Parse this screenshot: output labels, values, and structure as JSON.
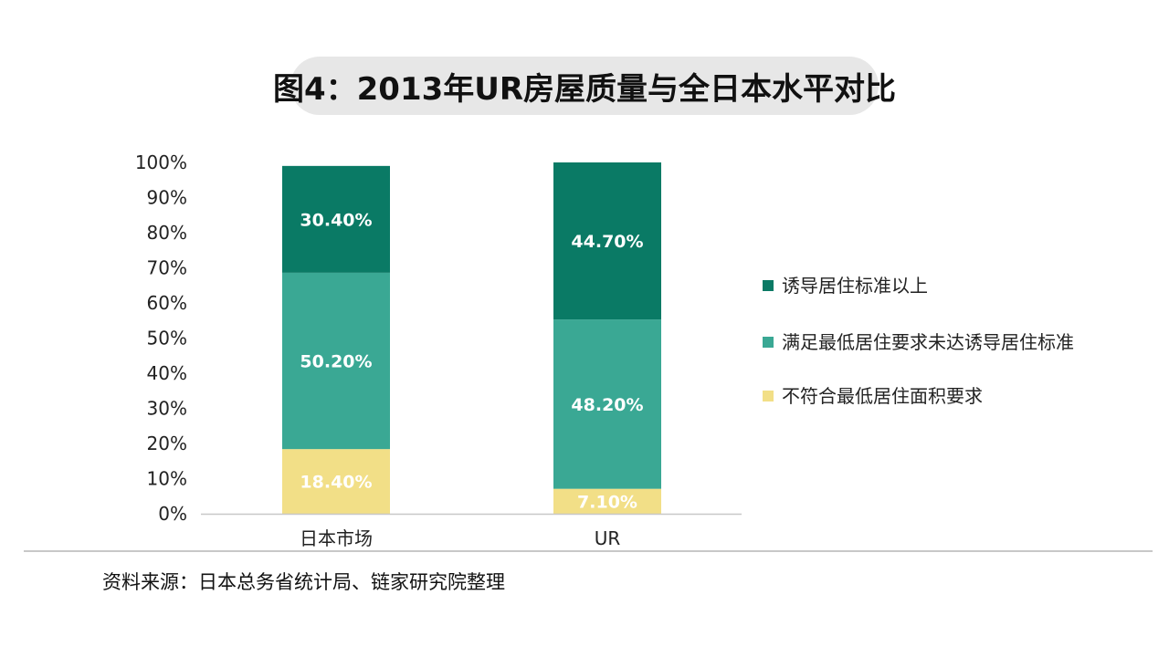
{
  "chart_data": {
    "type": "bar",
    "stacked": true,
    "title": "图4：2013年UR房屋质量与全日本水平对比",
    "categories": [
      "日本市场",
      "UR"
    ],
    "series": [
      {
        "name": "不符合最低居住面积要求",
        "values": [
          18.4,
          7.1
        ],
        "labels": [
          "18.40%",
          "7.10%"
        ],
        "color": "#f2df87"
      },
      {
        "name": "满足最低居住要求未达诱导居住标准",
        "values": [
          50.2,
          48.2
        ],
        "labels": [
          "50.20%",
          "48.20%"
        ],
        "color": "#3aa894"
      },
      {
        "name": "诱导居住标准以上",
        "values": [
          30.4,
          44.7
        ],
        "labels": [
          "30.40%",
          "44.70%"
        ],
        "color": "#0a7a65"
      }
    ],
    "yticks": [
      "0%",
      "10%",
      "20%",
      "30%",
      "40%",
      "50%",
      "60%",
      "70%",
      "80%",
      "90%",
      "100%"
    ],
    "ylim": [
      0,
      100
    ],
    "xlabel": "",
    "ylabel": "",
    "grid": false,
    "legend_position": "right"
  },
  "legend": [
    {
      "label": "诱导居住标准以上",
      "color": "#0a7a65"
    },
    {
      "label": "满足最低居住要求未达诱导居住标准",
      "color": "#3aa894"
    },
    {
      "label": "不符合最低居住面积要求",
      "color": "#f2df87"
    }
  ],
  "source": "资料来源：日本总务省统计局、链家研究院整理"
}
